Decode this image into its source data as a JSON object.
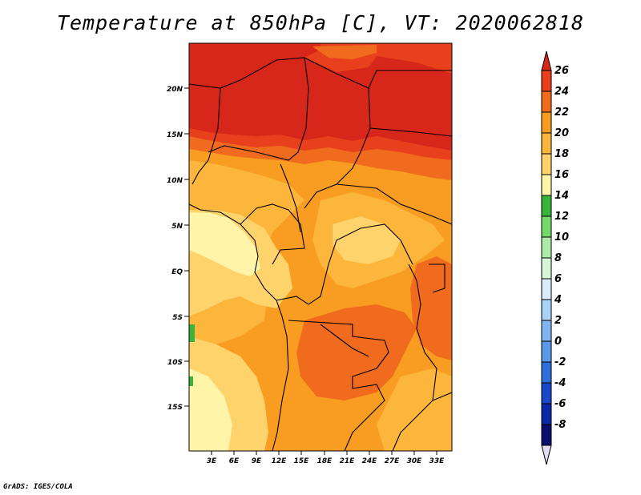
{
  "title": "Temperature at 850hPa [C], VT: 2020062818",
  "credit": "GrADS: IGES/COLA",
  "map": {
    "lat_labels": [
      "20N",
      "15N",
      "10N",
      "5N",
      "EQ",
      "5S",
      "10S",
      "15S"
    ],
    "lon_labels": [
      "3E",
      "6E",
      "9E",
      "12E",
      "15E",
      "18E",
      "21E",
      "24E",
      "27E",
      "30E",
      "33E"
    ]
  },
  "colorbar": {
    "levels": [
      "26",
      "24",
      "22",
      "20",
      "18",
      "16",
      "14",
      "12",
      "10",
      "8",
      "6",
      "4",
      "2",
      "0",
      "-2",
      "-4",
      "-6",
      "-8"
    ],
    "colors": [
      "#d7261a",
      "#e8401c",
      "#f06b1e",
      "#f89c22",
      "#fbb63b",
      "#fed36c",
      "#fff4a7",
      "#39b43a",
      "#76d86a",
      "#acebab",
      "#d6f6d6",
      "#d8ecfb",
      "#a9d2f7",
      "#82b5ef",
      "#5a98e8",
      "#2e6fdc",
      "#1a48c8",
      "#0b2aa8",
      "#0a0f6e",
      "#e3dcf2"
    ]
  }
}
